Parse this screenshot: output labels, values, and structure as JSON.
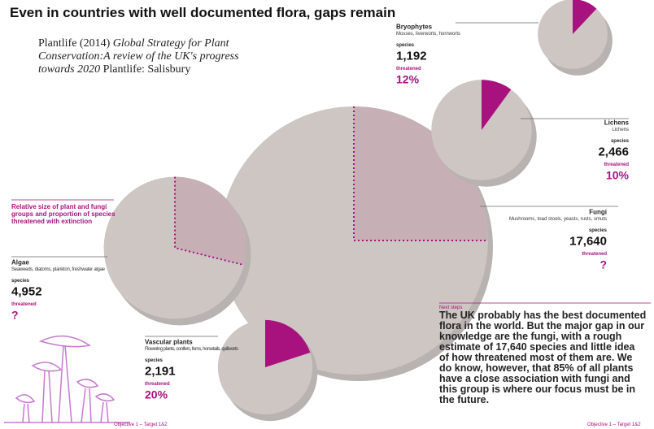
{
  "chart_data": {
    "type": "bubble-pie",
    "title": "Even in countries with well documented flora, gaps remain",
    "citation": {
      "author": "Plantlife (2014)",
      "work": "Global Strategy for Plant Conservation:A review of the UK's progress towards 2020",
      "publisher": "Plantlife: Salisbury"
    },
    "note": "Relative size of plant and fungi groups and proportion of species threatened with extinction",
    "species_label": "species",
    "threatened_label": "threatened",
    "colors": {
      "circle": "#cdc6c2",
      "shadow": "#b8b3b0",
      "threatened": "#a8127e",
      "unknown": "#c6b0b6"
    },
    "groups": [
      {
        "name": "Bryophytes",
        "description": "Mosses, liverworts, hornworts",
        "species": {
          "value": 1192,
          "label": "1,192"
        },
        "threatened": {
          "value": 12,
          "label": "12%"
        }
      },
      {
        "name": "Lichens",
        "description": "Lichens",
        "species": {
          "value": 2466,
          "label": "2,466"
        },
        "threatened": {
          "value": 10,
          "label": "10%"
        }
      },
      {
        "name": "Fungi",
        "description": "Mushrooms, toad stools, yeasts, rusts, smuts",
        "species": {
          "value": 17640,
          "label": "17,640"
        },
        "threatened": {
          "value": null,
          "label": "?"
        }
      },
      {
        "name": "Algae",
        "description": "Seaweeds, diatoms, plankton, freshwater algae",
        "species": {
          "value": 4952,
          "label": "4,952"
        },
        "threatened": {
          "value": null,
          "label": "?"
        }
      },
      {
        "name": "Vascular plants",
        "description": "Flowering plants, conifers, ferns, horsetails, quillworts",
        "species": {
          "value": 2191,
          "label": "2,191"
        },
        "threatened": {
          "value": 20,
          "label": "20%"
        }
      }
    ],
    "next_steps": {
      "label": "Next steps",
      "text": "The UK probably has the best documented flora in the world. But the major gap in our knowledge are the fungi, with a rough estimate of 17,640 species and little idea of how threatened most of them are. We do know, however, that 85% of all plants have a close association with fungi and this group is where our focus must be in the future."
    },
    "footer": [
      "Objective 1 – Target 1&2",
      "Objective 1 – Target 1&2"
    ]
  }
}
